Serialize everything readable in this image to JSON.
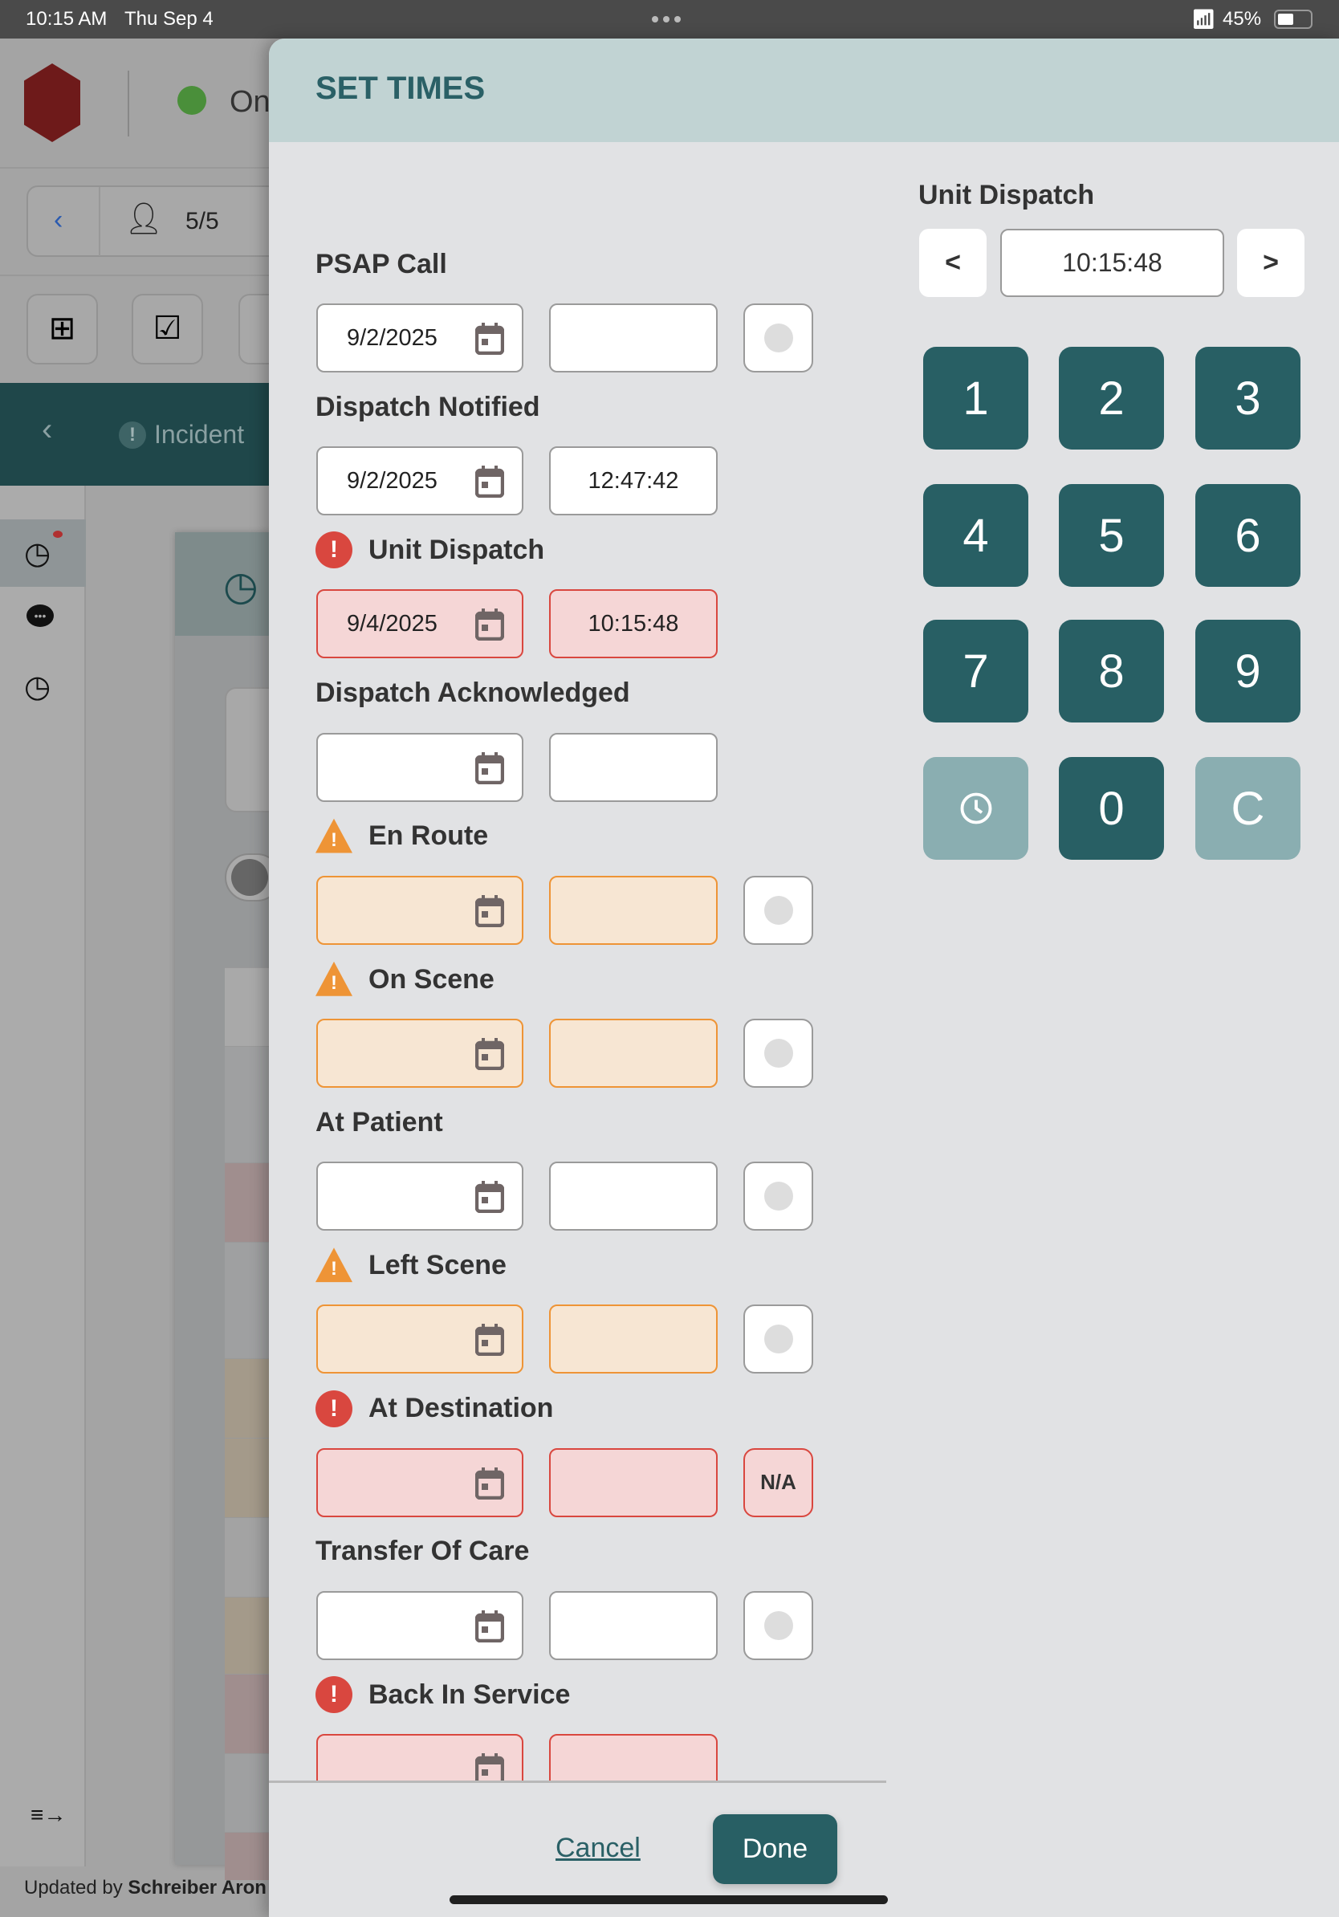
{
  "status_bar": {
    "time": "10:15 AM",
    "date": "Thu Sep 4",
    "battery": "45%",
    "battery_level": 0.45
  },
  "background_app": {
    "status_text": "On",
    "patient_count": "5/5",
    "nav_title": "Incident",
    "footer_prefix": "Updated by ",
    "footer_name": "Schreiber Aron",
    "status_color": "#4a8f3a"
  },
  "panel": {
    "title": "SET TIMES",
    "rows": [
      {
        "label": "PSAP Call",
        "status": "none",
        "date": "9/2/2025",
        "time": "",
        "extra": "circle"
      },
      {
        "label": "Dispatch Notified",
        "status": "none",
        "date": "9/2/2025",
        "time": "12:47:42",
        "extra": ""
      },
      {
        "label": "Unit Dispatch",
        "status": "error",
        "date": "9/4/2025",
        "time": "10:15:48",
        "extra": ""
      },
      {
        "label": "Dispatch Acknowledged",
        "status": "none",
        "date": "",
        "time": "",
        "extra": ""
      },
      {
        "label": "En Route",
        "status": "warning",
        "date": "",
        "time": "",
        "extra": "circle"
      },
      {
        "label": "On Scene",
        "status": "warning",
        "date": "",
        "time": "",
        "extra": "circle"
      },
      {
        "label": "At Patient",
        "status": "none",
        "date": "",
        "time": "",
        "extra": "circle"
      },
      {
        "label": "Left Scene",
        "status": "warning",
        "date": "",
        "time": "",
        "extra": "circle"
      },
      {
        "label": "At Destination",
        "status": "error",
        "date": "",
        "time": "",
        "extra": "N/A"
      },
      {
        "label": "Transfer Of Care",
        "status": "none",
        "date": "",
        "time": "",
        "extra": "circle"
      },
      {
        "label": "Back In Service",
        "status": "error",
        "date": "",
        "time": "",
        "extra": ""
      }
    ],
    "cancel_label": "Cancel",
    "done_label": "Done"
  },
  "keypad": {
    "field_label": "Unit Dispatch",
    "value": "10:15:48",
    "prev": "<",
    "next": ">",
    "keys": [
      "1",
      "2",
      "3",
      "4",
      "5",
      "6",
      "7",
      "8",
      "9",
      "clock-icon",
      "0",
      "C"
    ]
  },
  "colors": {
    "accent": "#285f64",
    "error": "#d9473f",
    "warning": "#ee9436",
    "key_light": "#8aaeb1"
  }
}
